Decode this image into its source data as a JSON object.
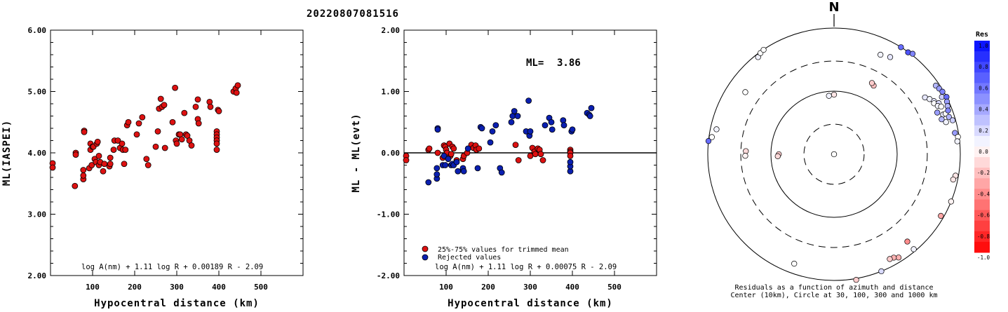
{
  "event_id": "20220807081516",
  "chart_data": [
    {
      "type": "scatter",
      "ylabel": "ML(IASPEI)",
      "xlabel": "Hypocentral distance (km)",
      "xlim": [
        0,
        600
      ],
      "ylim": [
        2.0,
        6.0
      ],
      "xticks": [
        "100",
        "200",
        "300",
        "400",
        "500"
      ],
      "yticks": [
        "2.00",
        "3.00",
        "4.00",
        "5.00",
        "6.00"
      ],
      "formula": "log A(nm) + 1.11 log R + 0.00189 R - 2.09",
      "point_color": "#dd1111",
      "points": [
        [
          5,
          3.83
        ],
        [
          5,
          3.76
        ],
        [
          58,
          3.46
        ],
        [
          60,
          4.0
        ],
        [
          60,
          3.97
        ],
        [
          78,
          3.57
        ],
        [
          78,
          3.63
        ],
        [
          78,
          3.72
        ],
        [
          80,
          4.36
        ],
        [
          80,
          4.34
        ],
        [
          92,
          3.75
        ],
        [
          95,
          4.15
        ],
        [
          95,
          4.05
        ],
        [
          98,
          3.8
        ],
        [
          100,
          4.1
        ],
        [
          102,
          4.1
        ],
        [
          105,
          3.9
        ],
        [
          108,
          3.85
        ],
        [
          110,
          4.15
        ],
        [
          112,
          4.18
        ],
        [
          115,
          3.95
        ],
        [
          115,
          3.8
        ],
        [
          118,
          3.85
        ],
        [
          125,
          3.7
        ],
        [
          128,
          3.82
        ],
        [
          140,
          3.78
        ],
        [
          142,
          3.82
        ],
        [
          142,
          3.92
        ],
        [
          150,
          4.05
        ],
        [
          152,
          4.2
        ],
        [
          160,
          4.2
        ],
        [
          165,
          4.08
        ],
        [
          170,
          4.15
        ],
        [
          172,
          4.05
        ],
        [
          175,
          3.82
        ],
        [
          178,
          4.05
        ],
        [
          182,
          4.45
        ],
        [
          185,
          4.5
        ],
        [
          205,
          4.3
        ],
        [
          210,
          4.48
        ],
        [
          218,
          4.58
        ],
        [
          228,
          3.9
        ],
        [
          232,
          3.8
        ],
        [
          250,
          4.1
        ],
        [
          255,
          4.35
        ],
        [
          258,
          4.72
        ],
        [
          262,
          4.88
        ],
        [
          265,
          4.75
        ],
        [
          270,
          4.78
        ],
        [
          272,
          4.08
        ],
        [
          290,
          4.5
        ],
        [
          296,
          5.06
        ],
        [
          298,
          4.2
        ],
        [
          300,
          4.15
        ],
        [
          305,
          4.3
        ],
        [
          308,
          4.3
        ],
        [
          312,
          4.22
        ],
        [
          318,
          4.65
        ],
        [
          322,
          4.3
        ],
        [
          325,
          4.28
        ],
        [
          330,
          4.2
        ],
        [
          335,
          4.12
        ],
        [
          345,
          4.75
        ],
        [
          350,
          4.87
        ],
        [
          350,
          4.55
        ],
        [
          352,
          4.48
        ],
        [
          378,
          4.83
        ],
        [
          380,
          4.75
        ],
        [
          395,
          4.35
        ],
        [
          395,
          4.3
        ],
        [
          395,
          4.25
        ],
        [
          395,
          4.2
        ],
        [
          395,
          4.15
        ],
        [
          395,
          4.05
        ],
        [
          398,
          4.7
        ],
        [
          400,
          4.68
        ],
        [
          435,
          5.0
        ],
        [
          440,
          5.05
        ],
        [
          442,
          4.98
        ],
        [
          445,
          5.1
        ]
      ]
    },
    {
      "type": "scatter",
      "ylabel": "ML - ML(evt)",
      "xlabel": "Hypocentral distance (km)",
      "xlim": [
        0,
        600
      ],
      "ylim": [
        -2.0,
        2.0
      ],
      "xticks": [
        "100",
        "200",
        "300",
        "400",
        "500"
      ],
      "yticks": [
        "-2.00",
        "-1.00",
        "0.00",
        "1.00",
        "2.00"
      ],
      "ml_label": "ML=",
      "ml_value": "3.86",
      "formula": "log A(nm) + 1.11 log R + 0.00075 R - 2.09",
      "reference_line": 0.0,
      "legend": [
        {
          "label": "25%-75% values for trimmed mean",
          "color": "#dd1111"
        },
        {
          "label": "Rejected values",
          "color": "#0a1fb0"
        }
      ],
      "trimmed_points": [
        [
          5,
          -0.05
        ],
        [
          5,
          -0.12
        ],
        [
          58,
          0.05
        ],
        [
          60,
          0.07
        ],
        [
          80,
          0.0
        ],
        [
          92,
          -0.08
        ],
        [
          95,
          0.12
        ],
        [
          98,
          0.1
        ],
        [
          100,
          0.05
        ],
        [
          102,
          0.0
        ],
        [
          108,
          0.15
        ],
        [
          110,
          -0.05
        ],
        [
          112,
          -0.02
        ],
        [
          115,
          0.1
        ],
        [
          118,
          0.07
        ],
        [
          125,
          -0.12
        ],
        [
          140,
          -0.1
        ],
        [
          142,
          -0.05
        ],
        [
          150,
          0.0
        ],
        [
          160,
          0.13
        ],
        [
          165,
          0.08
        ],
        [
          170,
          0.12
        ],
        [
          172,
          0.05
        ],
        [
          178,
          0.07
        ],
        [
          265,
          0.13
        ],
        [
          272,
          -0.12
        ],
        [
          300,
          -0.05
        ],
        [
          305,
          0.08
        ],
        [
          310,
          0.02
        ],
        [
          312,
          -0.02
        ],
        [
          318,
          0.07
        ],
        [
          322,
          0.05
        ],
        [
          325,
          -0.02
        ],
        [
          330,
          -0.12
        ],
        [
          395,
          0.05
        ],
        [
          395,
          0.02
        ],
        [
          395,
          0.0
        ],
        [
          395,
          -0.05
        ]
      ],
      "rejected_points": [
        [
          58,
          -0.48
        ],
        [
          78,
          -0.42
        ],
        [
          78,
          -0.35
        ],
        [
          78,
          -0.25
        ],
        [
          80,
          0.4
        ],
        [
          80,
          0.38
        ],
        [
          92,
          -0.2
        ],
        [
          95,
          -0.05
        ],
        [
          98,
          -0.2
        ],
        [
          105,
          -0.1
        ],
        [
          112,
          -0.2
        ],
        [
          115,
          -0.18
        ],
        [
          118,
          -0.2
        ],
        [
          125,
          -0.15
        ],
        [
          128,
          -0.3
        ],
        [
          140,
          -0.25
        ],
        [
          142,
          -0.3
        ],
        [
          152,
          0.07
        ],
        [
          175,
          -0.25
        ],
        [
          182,
          0.42
        ],
        [
          185,
          0.4
        ],
        [
          205,
          0.17
        ],
        [
          210,
          0.35
        ],
        [
          218,
          0.45
        ],
        [
          228,
          -0.25
        ],
        [
          232,
          -0.32
        ],
        [
          255,
          0.5
        ],
        [
          258,
          0.6
        ],
        [
          262,
          0.68
        ],
        [
          270,
          0.6
        ],
        [
          290,
          0.35
        ],
        [
          296,
          0.85
        ],
        [
          298,
          0.28
        ],
        [
          300,
          0.35
        ],
        [
          335,
          0.45
        ],
        [
          345,
          0.57
        ],
        [
          350,
          0.5
        ],
        [
          352,
          0.38
        ],
        [
          378,
          0.53
        ],
        [
          380,
          0.45
        ],
        [
          395,
          -0.3
        ],
        [
          395,
          -0.22
        ],
        [
          395,
          -0.15
        ],
        [
          398,
          0.35
        ],
        [
          400,
          0.38
        ],
        [
          435,
          0.65
        ],
        [
          440,
          0.62
        ],
        [
          442,
          0.6
        ],
        [
          445,
          0.73
        ]
      ]
    },
    {
      "type": "polar",
      "north_label": "N",
      "caption_line1": "Residuals as a function of azimuth and distance",
      "caption_line2": "Center (10km), Circle at 30, 100, 300 and 1000 km",
      "colorbar_title": "Res",
      "colorbar_ticks": [
        "1.0",
        "0.8",
        "0.6",
        "0.4",
        "0.2",
        "0.0",
        "-0.2",
        "-0.4",
        "-0.6",
        "-0.8",
        "-1.0"
      ],
      "circles_km": [
        30,
        100,
        300,
        1000
      ],
      "points": [
        {
          "az": 20,
          "dist": 5,
          "res": 0.0
        },
        {
          "az": 200,
          "dist": 5,
          "res": 0.0
        },
        {
          "az": 355,
          "dist": 85,
          "res": 0.05
        },
        {
          "az": 0,
          "dist": 88,
          "res": -0.1
        },
        {
          "az": 30,
          "dist": 180,
          "res": -0.25
        },
        {
          "az": 28,
          "dist": 190,
          "res": -0.2
        },
        {
          "az": 270,
          "dist": 75,
          "res": -0.2
        },
        {
          "az": 268,
          "dist": 78,
          "res": -0.15
        },
        {
          "az": 272,
          "dist": 250,
          "res": -0.15
        },
        {
          "az": 269,
          "dist": 255,
          "res": -0.05
        },
        {
          "az": 322,
          "dist": 900,
          "res": 0.05
        },
        {
          "az": 324,
          "dist": 960,
          "res": 0.0
        },
        {
          "az": 326,
          "dist": 990,
          "res": 0.0
        },
        {
          "az": 305,
          "dist": 520,
          "res": 0.0
        },
        {
          "az": 276,
          "dist": 1000,
          "res": 0.6
        },
        {
          "az": 278,
          "dist": 900,
          "res": 0.0
        },
        {
          "az": 282,
          "dist": 800,
          "res": 0.05
        },
        {
          "az": 25,
          "dist": 550,
          "res": 0.05
        },
        {
          "az": 30,
          "dist": 600,
          "res": 0.1
        },
        {
          "az": 32,
          "dist": 1000,
          "res": 0.6
        },
        {
          "az": 36,
          "dist": 990,
          "res": 0.7
        },
        {
          "az": 38,
          "dist": 1050,
          "res": 0.5
        },
        {
          "az": 58,
          "dist": 500,
          "res": 0.1
        },
        {
          "az": 60,
          "dist": 560,
          "res": 0.05
        },
        {
          "az": 62,
          "dist": 620,
          "res": 0.1
        },
        {
          "az": 63,
          "dist": 600,
          "res": 0.0
        },
        {
          "az": 64,
          "dist": 700,
          "res": 0.15
        },
        {
          "az": 65,
          "dist": 650,
          "res": 0.05
        },
        {
          "az": 66,
          "dist": 720,
          "res": 0.0
        },
        {
          "az": 68,
          "dist": 580,
          "res": 0.4
        },
        {
          "az": 70,
          "dist": 690,
          "res": 0.1
        },
        {
          "az": 70,
          "dist": 760,
          "res": 0.0
        },
        {
          "az": 72,
          "dist": 620,
          "res": 0.3
        },
        {
          "az": 74,
          "dist": 700,
          "res": 0.05
        },
        {
          "az": 56,
          "dist": 880,
          "res": 0.3
        },
        {
          "az": 58,
          "dist": 920,
          "res": 0.4
        },
        {
          "az": 60,
          "dist": 960,
          "res": 0.5
        },
        {
          "az": 62,
          "dist": 860,
          "res": 0.2
        },
        {
          "az": 63,
          "dist": 1000,
          "res": 0.6
        },
        {
          "az": 65,
          "dist": 940,
          "res": 0.4
        },
        {
          "az": 67,
          "dist": 900,
          "res": 0.3
        },
        {
          "az": 69,
          "dist": 860,
          "res": 0.5
        },
        {
          "az": 72,
          "dist": 820,
          "res": 0.3
        },
        {
          "az": 74,
          "dist": 900,
          "res": 0.2
        },
        {
          "az": 80,
          "dist": 880,
          "res": 0.4
        },
        {
          "az": 82,
          "dist": 960,
          "res": 0.0
        },
        {
          "az": 84,
          "dist": 920,
          "res": 0.05
        },
        {
          "az": 100,
          "dist": 900,
          "res": -0.1
        },
        {
          "az": 102,
          "dist": 850,
          "res": -0.1
        },
        {
          "az": 112,
          "dist": 1000,
          "res": -0.05
        },
        {
          "az": 120,
          "dist": 900,
          "res": -0.35
        },
        {
          "az": 140,
          "dist": 640,
          "res": -0.45
        },
        {
          "az": 148,
          "dist": 850,
          "res": -0.3
        },
        {
          "az": 150,
          "dist": 780,
          "res": -0.3
        },
        {
          "az": 152,
          "dist": 760,
          "res": -0.2
        },
        {
          "az": 140,
          "dist": 920,
          "res": 0.05
        },
        {
          "az": 158,
          "dist": 1000,
          "res": 0.15
        },
        {
          "az": 170,
          "dist": 1050,
          "res": -0.2
        },
        {
          "az": 200,
          "dist": 700,
          "res": 0.0
        }
      ]
    }
  ]
}
